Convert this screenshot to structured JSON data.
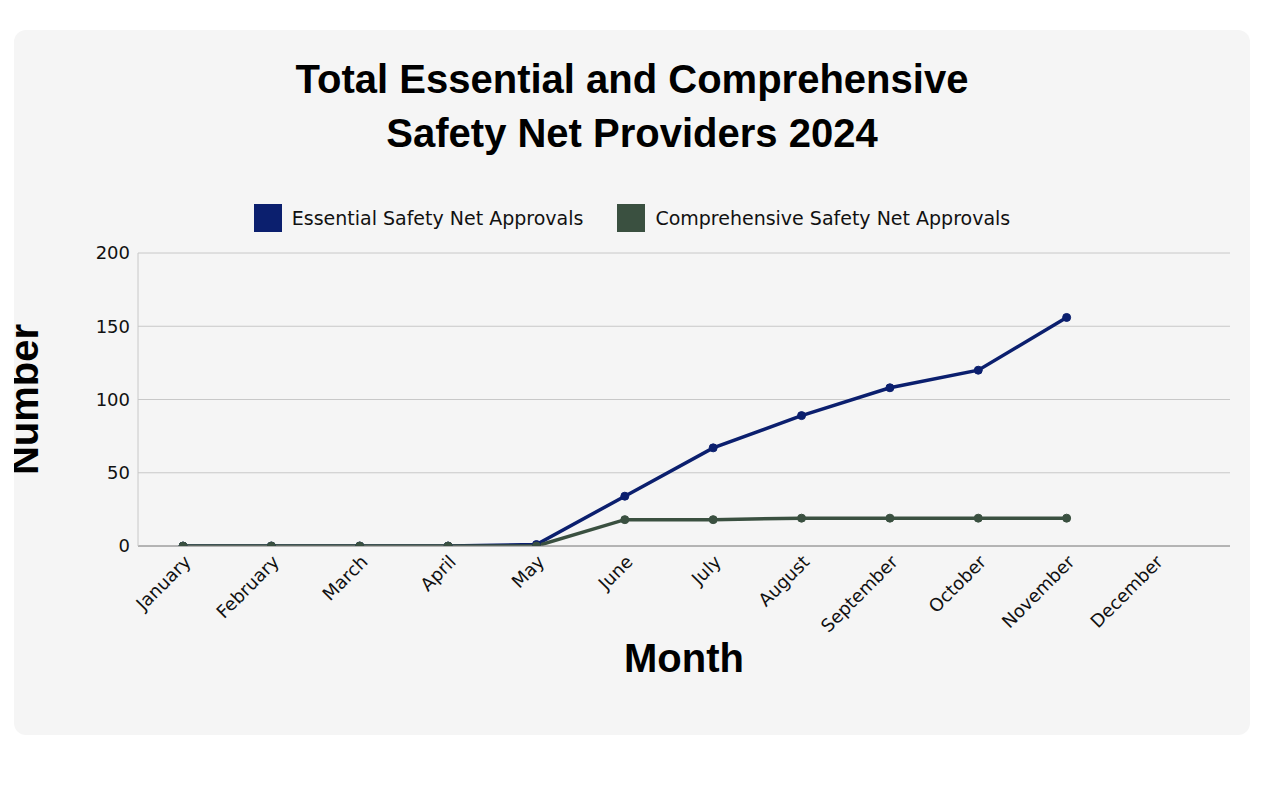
{
  "chart_data": {
    "type": "line",
    "title": "Total Essential and Comprehensive Safety Net Providers 2024",
    "x_label": "Month",
    "y_label": "Number",
    "categories": [
      "January",
      "February",
      "March",
      "April",
      "May",
      "June",
      "July",
      "August",
      "September",
      "October",
      "November",
      "December"
    ],
    "series": [
      {
        "name": "Essential Safety Net Approvals",
        "color": "#0b1f6e",
        "values": [
          0,
          0,
          0,
          0,
          1,
          34,
          67,
          89,
          108,
          120,
          156,
          null
        ]
      },
      {
        "name": "Comprehensive Safety Net Approvals",
        "color": "#3a5040",
        "values": [
          0,
          0,
          0,
          0,
          0,
          18,
          18,
          19,
          19,
          19,
          19,
          null
        ]
      }
    ],
    "ylim": [
      0,
      200
    ],
    "yticks": [
      0,
      50,
      100,
      150,
      200
    ],
    "grid": true,
    "legend": "top",
    "marker": "circle"
  }
}
